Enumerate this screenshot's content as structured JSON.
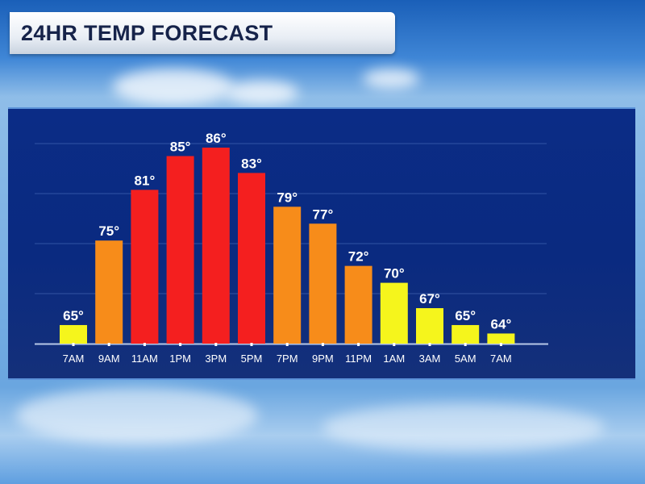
{
  "header": {
    "title": "24HR TEMP FORECAST"
  },
  "chart_data": {
    "type": "bar",
    "title": "",
    "xlabel": "",
    "ylabel": "",
    "categories": [
      "7AM",
      "9AM",
      "11AM",
      "1PM",
      "3PM",
      "5PM",
      "7PM",
      "9PM",
      "11PM",
      "1AM",
      "3AM",
      "5AM",
      "7AM"
    ],
    "values": [
      65,
      75,
      81,
      85,
      86,
      83,
      79,
      77,
      72,
      70,
      67,
      65,
      64
    ],
    "value_labels": [
      "65°",
      "75°",
      "81°",
      "85°",
      "86°",
      "83°",
      "79°",
      "77°",
      "72°",
      "70°",
      "67°",
      "65°",
      "64°"
    ],
    "ylim": [
      62.8,
      88
    ],
    "grid": true,
    "colors": {
      "hot": "#f41f1f",
      "warm": "#f78c1a",
      "mild": "#f5f51c"
    },
    "color_thresholds": {
      "hot_at_or_above": 80,
      "warm_at_or_above": 71
    }
  }
}
